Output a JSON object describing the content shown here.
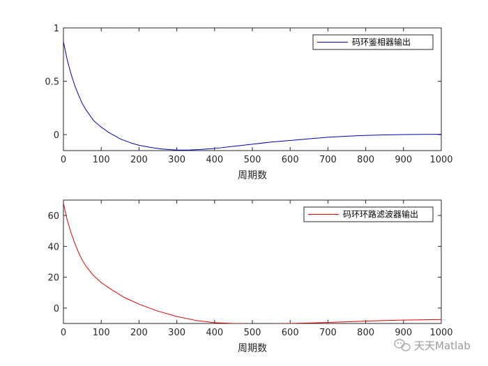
{
  "chart_data": [
    {
      "type": "line",
      "xlabel": "周期数",
      "ylabel": "",
      "title": "",
      "xlim": [
        0,
        1000
      ],
      "ylim": [
        -0.15,
        1
      ],
      "xticks": [
        0,
        100,
        200,
        300,
        400,
        500,
        600,
        700,
        800,
        900,
        1000
      ],
      "yticks": [
        0,
        0.5,
        1
      ],
      "ytick_labels": [
        "0",
        "0.5",
        "1"
      ],
      "legend_position": "top-right",
      "grid": false,
      "series": [
        {
          "name": "码环鉴相器输出",
          "color": "#0000b0",
          "x": [
            0,
            10,
            20,
            30,
            40,
            50,
            60,
            70,
            80,
            100,
            120,
            150,
            180,
            200,
            230,
            260,
            300,
            330,
            360,
            400,
            450,
            500,
            550,
            600,
            650,
            700,
            750,
            800,
            850,
            900,
            950,
            1000
          ],
          "y": [
            0.87,
            0.7,
            0.57,
            0.46,
            0.37,
            0.29,
            0.23,
            0.18,
            0.13,
            0.07,
            0.02,
            -0.04,
            -0.08,
            -0.1,
            -0.12,
            -0.135,
            -0.145,
            -0.145,
            -0.14,
            -0.13,
            -0.11,
            -0.09,
            -0.07,
            -0.055,
            -0.04,
            -0.025,
            -0.015,
            -0.008,
            -0.003,
            0.0,
            0.002,
            0.003
          ]
        }
      ]
    },
    {
      "type": "line",
      "xlabel": "周期数",
      "ylabel": "",
      "title": "",
      "xlim": [
        0,
        1000
      ],
      "ylim": [
        -10,
        70
      ],
      "xticks": [
        0,
        100,
        200,
        300,
        400,
        500,
        600,
        700,
        800,
        900,
        1000
      ],
      "yticks": [
        0,
        20,
        40,
        60
      ],
      "ytick_labels": [
        "0",
        "20",
        "40",
        "60"
      ],
      "legend_position": "top-right",
      "grid": false,
      "series": [
        {
          "name": "码环环路滤波器输出",
          "color": "#e00000",
          "x": [
            0,
            10,
            20,
            30,
            40,
            50,
            60,
            80,
            100,
            130,
            160,
            200,
            250,
            300,
            350,
            400,
            450,
            500,
            550,
            600,
            650,
            700,
            750,
            800,
            850,
            900,
            950,
            1000
          ],
          "y": [
            68,
            57,
            49,
            42,
            36,
            31,
            27,
            21,
            16.5,
            11.5,
            7,
            2.5,
            -2,
            -5.5,
            -8,
            -9.5,
            -10,
            -10.2,
            -10.2,
            -10,
            -9.7,
            -9.3,
            -8.9,
            -8.5,
            -8.1,
            -7.8,
            -7.6,
            -7.4
          ]
        }
      ]
    }
  ],
  "watermark": {
    "text": "天天Matlab",
    "icon": "wechat-icon"
  }
}
